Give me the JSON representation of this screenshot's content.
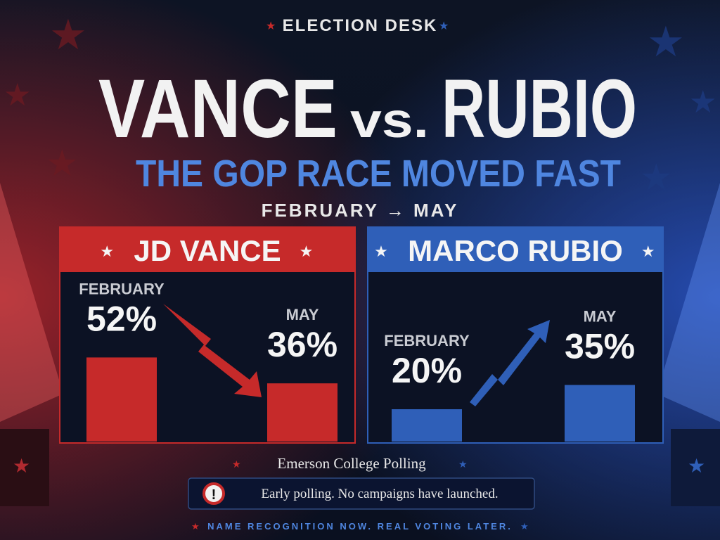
{
  "header": {
    "kicker": "ELECTION DESK",
    "title_left": "VANCE",
    "title_mid": "vs.",
    "title_right": "RUBIO",
    "subtitle": "THE GOP RACE MOVED FAST",
    "range": "FEBRUARY → MAY"
  },
  "chart_data": [
    {
      "type": "bar",
      "title": "JD VANCE",
      "categories": [
        "FEBRUARY",
        "MAY"
      ],
      "values": [
        52,
        36
      ],
      "value_labels": [
        "52%",
        "36%"
      ],
      "color": "#c62a2a"
    },
    {
      "type": "bar",
      "title": "MARCO RUBIO",
      "categories": [
        "FEBRUARY",
        "MAY"
      ],
      "values": [
        20,
        35
      ],
      "value_labels": [
        "20%",
        "35%"
      ],
      "color": "#2f5fb8"
    }
  ],
  "footer": {
    "source": "Emerson College Polling",
    "note": "Early polling. No campaigns have launched.",
    "tagline": "NAME RECOGNITION NOW. REAL VOTING LATER."
  }
}
